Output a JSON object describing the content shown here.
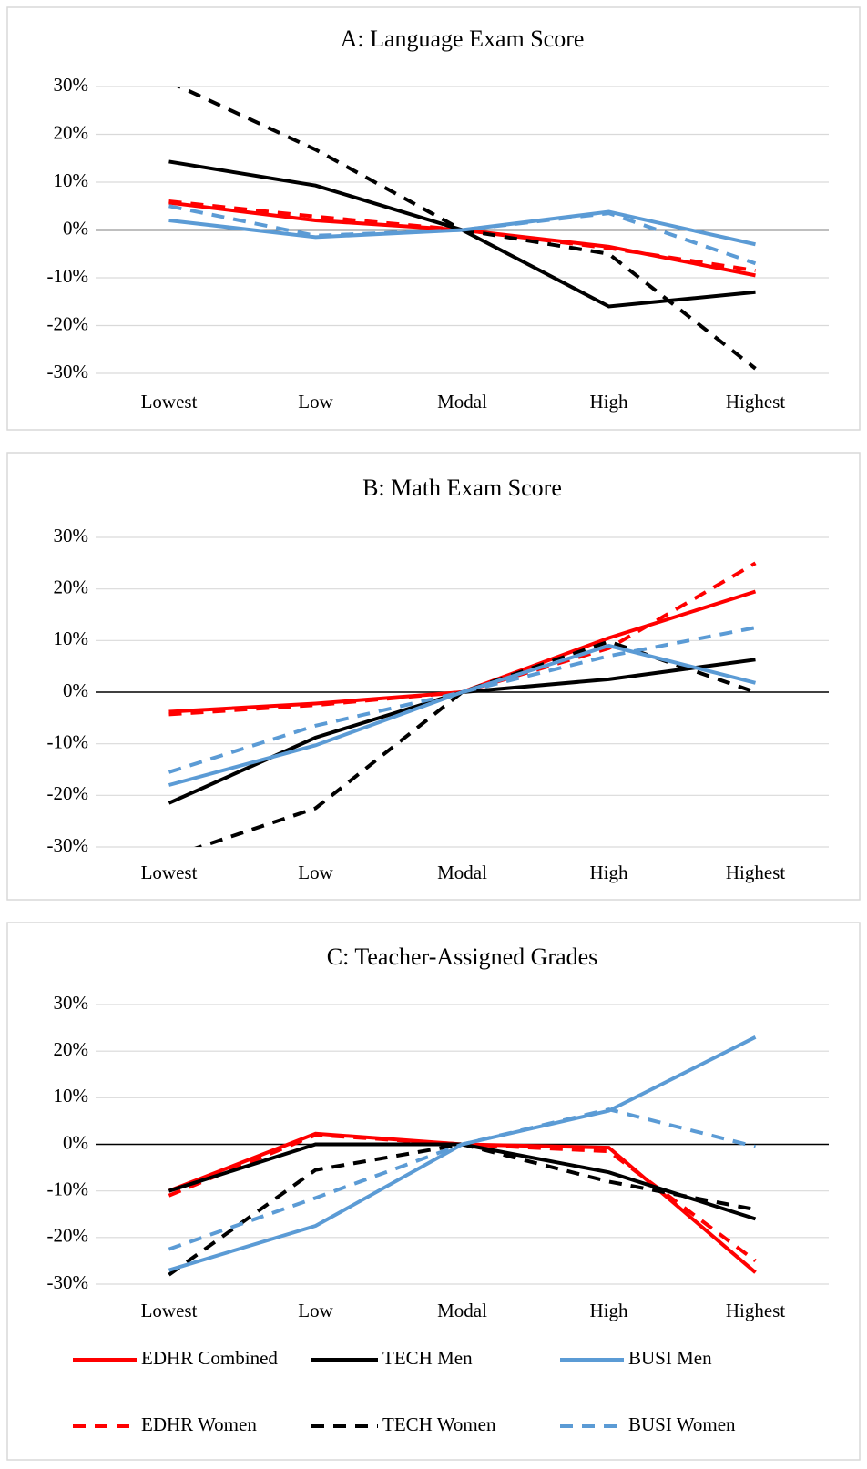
{
  "chart_data": [
    {
      "type": "line",
      "title": "A:  Language Exam Score",
      "categories": [
        "Lowest",
        "Low",
        "Modal",
        "High",
        "Highest"
      ],
      "ylim": [
        -30,
        30
      ],
      "yticks": [
        {
          "value": -30,
          "label": "-30%"
        },
        {
          "value": -20,
          "label": "-20%"
        },
        {
          "value": -10,
          "label": "-10%"
        },
        {
          "value": 0,
          "label": "0%"
        },
        {
          "value": 10,
          "label": "10%"
        },
        {
          "value": 20,
          "label": "20%"
        },
        {
          "value": 30,
          "label": "30%"
        }
      ],
      "grid": true,
      "series": [
        {
          "name": "EDHR Combined",
          "color": "#ff0000",
          "dashed": false,
          "values": [
            5.7,
            2,
            0,
            -3.5,
            -9.5
          ]
        },
        {
          "name": "EDHR Women",
          "color": "#ff0000",
          "dashed": true,
          "values": [
            6,
            2.8,
            0,
            -3.8,
            -8.5
          ]
        },
        {
          "name": "TECH Men",
          "color": "#000000",
          "dashed": false,
          "values": [
            14.3,
            9.3,
            0,
            -16,
            -13
          ]
        },
        {
          "name": "TECH Women",
          "color": "#000000",
          "dashed": true,
          "values": [
            31,
            16.8,
            0,
            -5,
            -29
          ]
        },
        {
          "name": "BUSI Men",
          "color": "#5b9bd5",
          "dashed": false,
          "values": [
            2,
            -1.5,
            0,
            3.8,
            -3
          ]
        },
        {
          "name": "BUSI Women",
          "color": "#5b9bd5",
          "dashed": true,
          "values": [
            5,
            -1.2,
            0,
            3.5,
            -7
          ]
        }
      ]
    },
    {
      "type": "line",
      "title": "B:  Math Exam Score",
      "categories": [
        "Lowest",
        "Low",
        "Modal",
        "High",
        "Highest"
      ],
      "ylim": [
        -30,
        30
      ],
      "yticks": [
        {
          "value": -30,
          "label": "-30%"
        },
        {
          "value": -20,
          "label": "-20%"
        },
        {
          "value": -10,
          "label": "-10%"
        },
        {
          "value": 0,
          "label": "0%"
        },
        {
          "value": 10,
          "label": "10%"
        },
        {
          "value": 20,
          "label": "20%"
        },
        {
          "value": 30,
          "label": "30%"
        }
      ],
      "grid": true,
      "series": [
        {
          "name": "EDHR Combined",
          "color": "#ff0000",
          "dashed": false,
          "values": [
            -3.8,
            -2.2,
            0,
            10.5,
            19.5
          ]
        },
        {
          "name": "EDHR Women",
          "color": "#ff0000",
          "dashed": true,
          "values": [
            -4.3,
            -2.5,
            0,
            8.5,
            25
          ]
        },
        {
          "name": "TECH Men",
          "color": "#000000",
          "dashed": false,
          "values": [
            -21.5,
            -8.8,
            0,
            2.5,
            6.3
          ]
        },
        {
          "name": "TECH Women",
          "color": "#000000",
          "dashed": true,
          "values": [
            -32,
            -22.5,
            0,
            9.8,
            0
          ]
        },
        {
          "name": "BUSI Men",
          "color": "#5b9bd5",
          "dashed": false,
          "values": [
            -18,
            -10.3,
            0,
            9,
            1.8
          ]
        },
        {
          "name": "BUSI Women",
          "color": "#5b9bd5",
          "dashed": true,
          "values": [
            -15.5,
            -6.5,
            0,
            7,
            12.5
          ]
        }
      ]
    },
    {
      "type": "line",
      "title": "C:  Teacher-Assigned Grades",
      "categories": [
        "Lowest",
        "Low",
        "Modal",
        "High",
        "Highest"
      ],
      "ylim": [
        -30,
        30
      ],
      "yticks": [
        {
          "value": -30,
          "label": "-30%"
        },
        {
          "value": -20,
          "label": "-20%"
        },
        {
          "value": -10,
          "label": "-10%"
        },
        {
          "value": 0,
          "label": "0%"
        },
        {
          "value": 10,
          "label": "10%"
        },
        {
          "value": 20,
          "label": "20%"
        },
        {
          "value": 30,
          "label": "30%"
        }
      ],
      "grid": true,
      "legend": "bottom",
      "series": [
        {
          "name": "EDHR Combined",
          "color": "#ff0000",
          "dashed": false,
          "values": [
            -10,
            2.3,
            0,
            -0.7,
            -27.5
          ]
        },
        {
          "name": "EDHR Women",
          "color": "#ff0000",
          "dashed": true,
          "values": [
            -11,
            2,
            0,
            -1.5,
            -25
          ]
        },
        {
          "name": "TECH Men",
          "color": "#000000",
          "dashed": false,
          "values": [
            -10,
            0,
            0,
            -6,
            -16
          ]
        },
        {
          "name": "TECH Women",
          "color": "#000000",
          "dashed": true,
          "values": [
            -28,
            -5.5,
            0,
            -8,
            -14
          ]
        },
        {
          "name": "BUSI Men",
          "color": "#5b9bd5",
          "dashed": false,
          "values": [
            -27,
            -17.5,
            0,
            7.2,
            23
          ]
        },
        {
          "name": "BUSI Women",
          "color": "#5b9bd5",
          "dashed": true,
          "values": [
            -22.5,
            -11.5,
            0,
            7.5,
            -0.5
          ]
        }
      ]
    }
  ]
}
